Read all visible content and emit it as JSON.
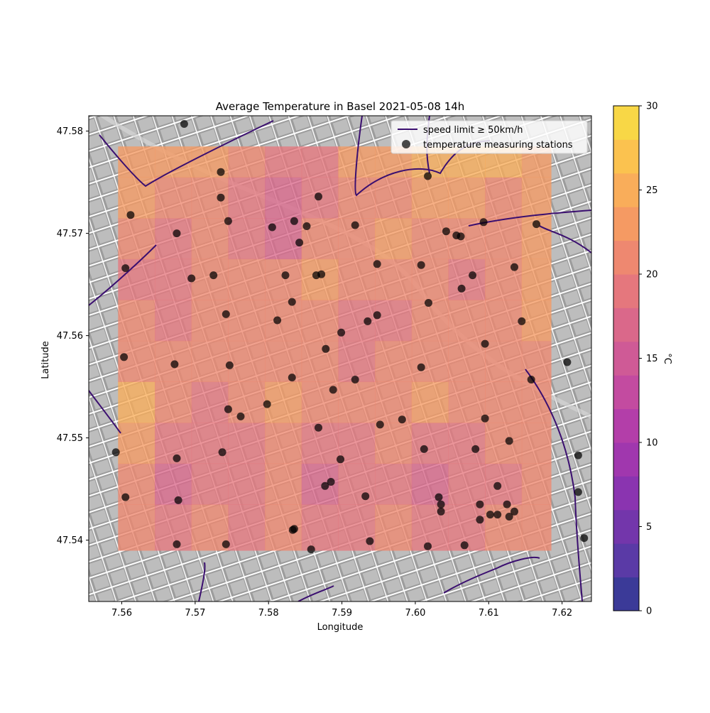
{
  "chart_data": [
    {
      "type": "heatmap",
      "title": "Average Temperature in Basel 2021-05-08 14h",
      "xlabel": "Longitude",
      "ylabel": "Latitude",
      "xlim": [
        7.5555,
        7.624
      ],
      "ylim": [
        47.534,
        47.5815
      ],
      "x_ticks": [
        7.56,
        7.57,
        7.58,
        7.59,
        7.6,
        7.61,
        7.62
      ],
      "x_tick_labels": [
        "7.56",
        "7.57",
        "7.58",
        "7.59",
        "7.60",
        "7.61",
        "7.62"
      ],
      "y_ticks": [
        47.54,
        47.55,
        47.56,
        47.57,
        47.58
      ],
      "y_tick_labels": [
        "47.54",
        "47.55",
        "47.56",
        "47.57",
        "47.58"
      ],
      "grid": false,
      "legend_position": "top-right",
      "legend": [
        {
          "label": "speed limit ≥ 50km/h",
          "kind": "line",
          "color": "#3b0f70"
        },
        {
          "label": "temperature measuring stations",
          "kind": "marker",
          "color": "#000000"
        }
      ],
      "temperature_field": {
        "x_edges": [
          7.5595,
          7.5645,
          7.5695,
          7.5745,
          7.5795,
          7.5845,
          7.5895,
          7.5945,
          7.5995,
          7.6045,
          7.6095,
          7.6145,
          7.6185
        ],
        "y_edges": [
          47.539,
          47.5435,
          47.5475,
          47.5515,
          47.5555,
          47.5595,
          47.5635,
          47.5675,
          47.5715,
          47.5755,
          47.5785
        ],
        "values": [
          [
            21.5,
            18.0,
            20.5,
            19.5,
            20.5,
            18.5,
            18.0,
            20.0,
            19.0,
            19.5,
            20.0,
            20.5
          ],
          [
            21.0,
            16.0,
            19.0,
            18.0,
            20.0,
            17.5,
            18.0,
            19.5,
            17.5,
            18.5,
            19.5,
            20.0
          ],
          [
            22.5,
            19.0,
            18.5,
            19.5,
            20.5,
            18.5,
            19.0,
            20.0,
            18.5,
            19.0,
            20.0,
            21.0
          ],
          [
            24.0,
            20.5,
            19.5,
            21.5,
            22.5,
            21.0,
            20.5,
            21.0,
            22.0,
            21.0,
            21.5,
            21.5
          ],
          [
            21.5,
            20.5,
            20.0,
            21.0,
            21.5,
            21.0,
            18.5,
            20.0,
            21.0,
            21.5,
            20.5,
            21.0
          ],
          [
            20.0,
            19.5,
            20.0,
            20.5,
            21.0,
            20.5,
            19.5,
            19.0,
            20.5,
            20.5,
            21.5,
            22.0
          ],
          [
            19.0,
            18.0,
            21.0,
            20.0,
            21.5,
            22.5,
            20.5,
            21.5,
            21.0,
            18.5,
            21.0,
            22.5
          ],
          [
            21.0,
            18.5,
            20.0,
            19.0,
            17.5,
            20.5,
            21.5,
            22.0,
            20.5,
            20.0,
            21.5,
            23.0
          ],
          [
            22.5,
            21.0,
            20.5,
            19.5,
            17.5,
            19.0,
            20.0,
            21.5,
            22.5,
            22.0,
            21.5,
            23.5
          ],
          [
            23.0,
            23.5,
            22.5,
            21.0,
            18.5,
            19.5,
            22.5,
            23.5,
            24.5,
            24.5,
            24.0,
            23.0
          ]
        ]
      },
      "stations": {
        "lon": [
          7.5685,
          7.5735,
          7.5735,
          7.5612,
          7.5745,
          7.5675,
          7.5805,
          7.5835,
          7.5852,
          7.5842,
          7.5868,
          7.5918,
          7.5872,
          7.6017,
          7.6042,
          7.6056,
          7.6062,
          7.6093,
          7.6165,
          7.5605,
          7.5695,
          7.5725,
          7.5823,
          7.5832,
          7.5865,
          7.5948,
          7.6008,
          7.6078,
          7.6135,
          7.6063,
          7.5742,
          7.5812,
          7.5899,
          7.5935,
          7.5948,
          7.6018,
          7.5603,
          7.5672,
          7.5747,
          7.5832,
          7.5878,
          7.5888,
          7.5918,
          7.6008,
          7.6095,
          7.6145,
          7.6158,
          7.6207,
          7.5745,
          7.5762,
          7.5798,
          7.5868,
          7.5952,
          7.5982,
          7.6012,
          7.6082,
          7.6095,
          7.6128,
          7.5592,
          7.5675,
          7.5737,
          7.5898,
          7.5877,
          7.5885,
          7.5932,
          7.6032,
          7.6035,
          7.6035,
          7.6088,
          7.6112,
          7.6112,
          7.6125,
          7.6088,
          7.6102,
          7.6128,
          7.6135,
          7.6222,
          7.5605,
          7.5677,
          7.5675,
          7.5742,
          7.5833,
          7.5835,
          7.5858,
          7.5938,
          7.6017,
          7.6067,
          7.6222,
          7.623
        ],
        "lat": [
          47.5807,
          47.576,
          47.5735,
          47.5718,
          47.5712,
          47.57,
          47.5706,
          47.5712,
          47.5707,
          47.5691,
          47.5736,
          47.5708,
          47.566,
          47.5756,
          47.5702,
          47.5698,
          47.5697,
          47.5711,
          47.5709,
          47.5666,
          47.5656,
          47.5659,
          47.5659,
          47.5633,
          47.5659,
          47.567,
          47.5669,
          47.5659,
          47.5667,
          47.5646,
          47.5621,
          47.5615,
          47.5603,
          47.5614,
          47.562,
          47.5632,
          47.5579,
          47.5572,
          47.5571,
          47.5559,
          47.5587,
          47.5547,
          47.5557,
          47.5569,
          47.5592,
          47.5614,
          47.5557,
          47.5574,
          47.5528,
          47.5521,
          47.5533,
          47.551,
          47.5513,
          47.5518,
          47.5489,
          47.5489,
          47.5519,
          47.5497,
          47.5486,
          47.548,
          47.5486,
          47.5479,
          47.5453,
          47.5457,
          47.5443,
          47.5442,
          47.5435,
          47.5428,
          47.5435,
          47.5425,
          47.5453,
          47.5435,
          47.542,
          47.5425,
          47.5423,
          47.5428,
          47.5483,
          47.5442,
          47.5439,
          47.5396,
          47.5396,
          47.541,
          47.5411,
          47.5391,
          47.5399,
          47.5394,
          47.5395,
          47.5447,
          47.5402
        ]
      },
      "colorbar": {
        "label": "°C",
        "range": [
          0,
          30
        ],
        "ticks": [
          0,
          5,
          10,
          15,
          20,
          25,
          30
        ],
        "tick_labels": [
          "0",
          "5",
          "10",
          "15",
          "20",
          "25",
          "30"
        ],
        "levels": [
          0,
          2,
          4,
          6,
          8,
          10,
          12,
          14,
          16,
          18,
          20,
          22,
          24,
          26,
          28,
          30
        ],
        "colors": [
          "#3b3a98",
          "#5a3aa6",
          "#7336ab",
          "#8a34b0",
          "#a037ae",
          "#b33ea9",
          "#c34ba0",
          "#cf5a96",
          "#da688a",
          "#e5777d",
          "#ee8870",
          "#f59a63",
          "#f9ad5a",
          "#fbc24f",
          "#f8d746",
          "#f0f24a"
        ],
        "cmap": "plasma"
      }
    }
  ]
}
